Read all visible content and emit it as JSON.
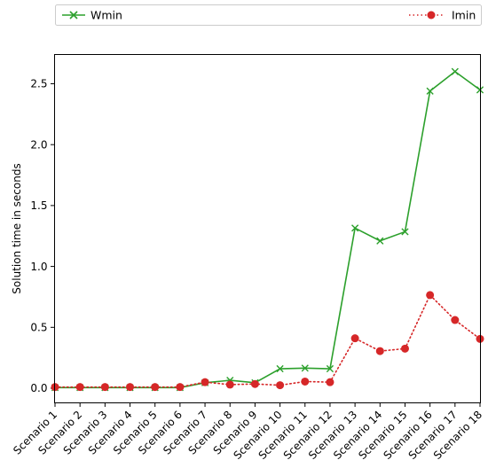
{
  "chart_data": {
    "type": "line",
    "title": "",
    "xlabel": "",
    "ylabel": "Solution time in seconds",
    "categories": [
      "Scenario 1",
      "Scenario 2",
      "Scenario 3",
      "Scenario 4",
      "Scenario 5",
      "Scenario 6",
      "Scenario 7",
      "Scenario 8",
      "Scenario 9",
      "Scenario 10",
      "Scenario 11",
      "Scenario 12",
      "Scenario 13",
      "Scenario 14",
      "Scenario 15",
      "Scenario 16",
      "Scenario 17",
      "Scenario 18"
    ],
    "ylim": [
      -0.12,
      2.74
    ],
    "yticks": [
      0.0,
      0.5,
      1.0,
      1.5,
      2.0,
      2.5
    ],
    "ytick_labels": [
      "0.0",
      "0.5",
      "1.0",
      "1.5",
      "2.0",
      "2.5"
    ],
    "grid": false,
    "legend_placement": "top, spanning width (Wmin left, Imin right)",
    "series": [
      {
        "name": "Wmin",
        "color": "#2ca02c",
        "line_style": "solid",
        "marker": "x",
        "values": [
          0.005,
          0.005,
          0.005,
          0.005,
          0.005,
          0.005,
          0.045,
          0.065,
          0.045,
          0.16,
          0.165,
          0.16,
          1.315,
          1.21,
          1.285,
          2.44,
          2.6,
          2.45
        ]
      },
      {
        "name": "Imin",
        "color": "#d62728",
        "line_style": "dotted",
        "marker": "circle",
        "values": [
          0.01,
          0.01,
          0.01,
          0.01,
          0.01,
          0.01,
          0.05,
          0.03,
          0.035,
          0.025,
          0.055,
          0.05,
          0.41,
          0.305,
          0.325,
          0.765,
          0.56,
          0.405
        ]
      }
    ]
  }
}
